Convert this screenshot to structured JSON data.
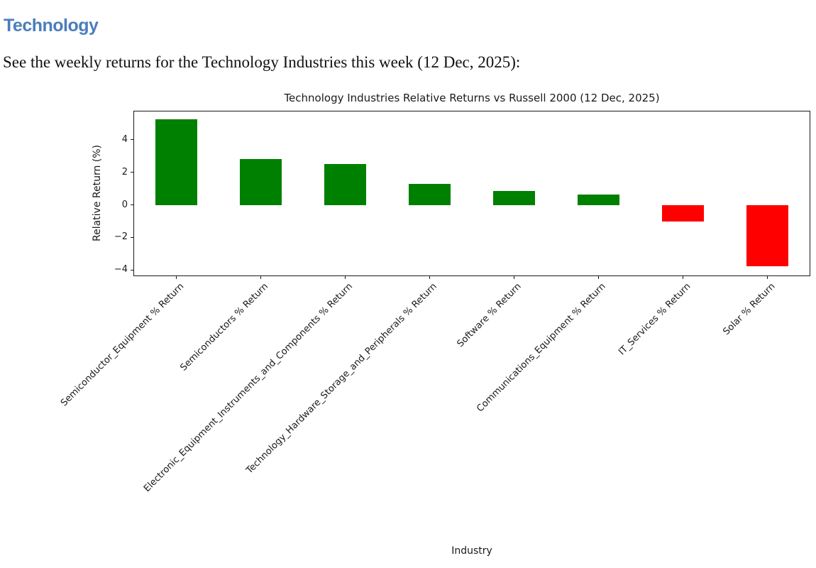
{
  "page": {
    "heading": "Technology",
    "heading_color": "#4a7ebb",
    "subtitle": "See the weekly returns for the Technology Industries this week (12 Dec, 2025):"
  },
  "chart_data": {
    "type": "bar",
    "title": "Technology Industries Relative Returns vs Russell 2000 (12 Dec, 2025)",
    "xlabel": "Industry",
    "ylabel": "Relative Return (%)",
    "categories": [
      "Semiconductor_Equipment % Return",
      "Semiconductors % Return",
      "Electronic_Equipment_Instruments_and_Components % Return",
      "Technology_Hardware_Storage_and_Peripherals % Return",
      "Software % Return",
      "Communications_Equipment % Return",
      "IT_Services % Return",
      "Solar % Return"
    ],
    "values": [
      5.25,
      2.8,
      2.5,
      1.3,
      0.85,
      0.65,
      -1.0,
      -3.75
    ],
    "ylim": [
      -4.33,
      5.73
    ],
    "yticks": [
      4,
      2,
      0,
      -2,
      -4
    ],
    "positive_color": "#008000",
    "negative_color": "#ff0000",
    "bar_width_fraction": 0.5,
    "x_tick_rotation_deg": 45,
    "grid": false,
    "legend_position": "none"
  }
}
